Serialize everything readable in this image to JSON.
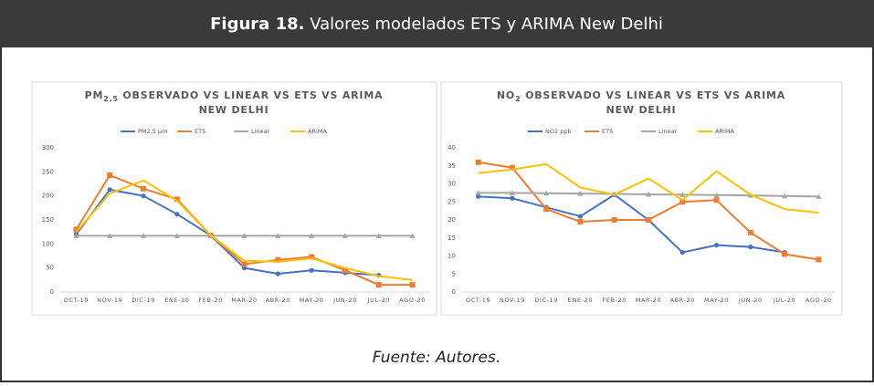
{
  "header": {
    "label": "Figura 18.",
    "text": "Valores modelados ETS y ARIMA New Delhi"
  },
  "chart_data": [
    {
      "type": "line",
      "title": [
        "PM",
        "2,5",
        " OBSERVADO VS LINEAR VS ETS VS ARIMA",
        "NEW DELHI"
      ],
      "categories": [
        "OCT-19",
        "NOV-19",
        "DIC-19",
        "ENE-20",
        "FEB-20",
        "MAR-20",
        "ABR-20",
        "MAY-20",
        "JUN-20",
        "JUL-20",
        "AGO-20"
      ],
      "ylim": [
        0,
        300
      ],
      "yticks": [
        0,
        50,
        100,
        150,
        200,
        250,
        300
      ],
      "series": [
        {
          "name": "PM2,5 µm",
          "color": "#4472c4",
          "marker": "circle",
          "values": [
            120,
            213,
            200,
            162,
            118,
            50,
            38,
            45,
            40,
            35,
            null
          ]
        },
        {
          "name": "ETS",
          "color": "#ed7d31",
          "marker": "square",
          "values": [
            130,
            243,
            215,
            193,
            118,
            58,
            67,
            73,
            45,
            15,
            15
          ]
        },
        {
          "name": "Linear",
          "color": "#a5a5a5",
          "marker": "triangle",
          "values": [
            117,
            117,
            117,
            117,
            117,
            117,
            117,
            117,
            117,
            117,
            117
          ]
        },
        {
          "name": "ARIMA",
          "color": "#ffc000",
          "marker": "none",
          "values": [
            125,
            205,
            232,
            190,
            118,
            65,
            63,
            70,
            50,
            33,
            25
          ]
        }
      ]
    },
    {
      "type": "line",
      "title": [
        "NO",
        "2",
        " OBSERVADO VS   LINEAR VS ETS VS ARIMA",
        "NEW DELHI"
      ],
      "categories": [
        "OCT-19",
        "NOV-19",
        "DIC-19",
        "ENE-20",
        "FEB-20",
        "MAR-20",
        "ABR-20",
        "MAY-20",
        "JUN-20",
        "JUL-20",
        "AGO-20"
      ],
      "ylim": [
        0,
        40
      ],
      "yticks": [
        0,
        5,
        10,
        15,
        20,
        25,
        30,
        35,
        40
      ],
      "series": [
        {
          "name": "NO2 ppb",
          "color": "#4472c4",
          "marker": "circle",
          "values": [
            26.5,
            26,
            23.5,
            21,
            27,
            20,
            11,
            13,
            12.5,
            11,
            null
          ]
        },
        {
          "name": "ETS",
          "color": "#ed7d31",
          "marker": "square",
          "values": [
            36,
            34.5,
            23,
            19.5,
            20,
            20,
            25,
            25.5,
            16.5,
            10.5,
            9
          ]
        },
        {
          "name": "Linear",
          "color": "#a5a5a5",
          "marker": "triangle",
          "values": [
            27.5,
            27.5,
            27.4,
            27.3,
            27.2,
            27.1,
            27,
            26.9,
            26.8,
            26.6,
            26.5
          ]
        },
        {
          "name": "ARIMA",
          "color": "#ffc000",
          "marker": "none",
          "values": [
            33,
            34,
            35.5,
            29,
            27,
            31.5,
            25.5,
            33.5,
            27,
            23,
            22
          ]
        }
      ]
    }
  ],
  "source": "Fuente: Autores."
}
